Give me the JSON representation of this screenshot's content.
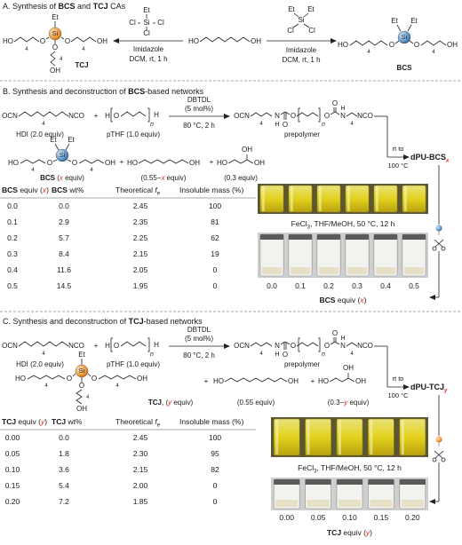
{
  "section_a": {
    "title": [
      "A. Synthesis of ",
      "BCS",
      " and ",
      "TCJ",
      " CAs"
    ],
    "tcj": {
      "name": "TCJ",
      "atoms": [
        "Et",
        "Si",
        "HO",
        "O",
        "O",
        "OH",
        "O",
        "OH"
      ],
      "repeats": [
        "4",
        "4",
        "4"
      ]
    },
    "left_reagent": [
      "Et",
      "Si",
      "Cl",
      "Cl",
      "Cl"
    ],
    "left_conditions": [
      "Imidazole",
      "DCM, rt, 1 h"
    ],
    "diol": [
      "HO",
      "OH"
    ],
    "right_reagent": [
      "Et",
      "Et",
      "Si",
      "Cl",
      "Cl"
    ],
    "right_conditions": [
      "Imidazole",
      "DCM, rt, 1 h"
    ],
    "bcs": {
      "name": "BCS",
      "atoms": [
        "Et",
        "Et",
        "Si",
        "HO",
        "O",
        "O",
        "OH"
      ],
      "repeats": [
        "4",
        "4"
      ]
    }
  },
  "section_b": {
    "title": [
      "B. Synthesis and deconstruction of ",
      "BCS",
      "-based networks"
    ],
    "hdi": {
      "atoms": [
        "OCN",
        "NCO"
      ],
      "repeat": "4",
      "label": "HDI (2.0 equiv)"
    },
    "plus": [
      "+",
      "+",
      "+"
    ],
    "pthf": {
      "atoms": [
        "H",
        "O",
        "H"
      ],
      "repeat": "n",
      "label": "pTHF (1.0 equiv)"
    },
    "conditions": [
      "DBTDL",
      "(5 mol%)",
      "80 °C, 2 h"
    ],
    "prepolymer": {
      "atoms": [
        "OCN",
        "N",
        "H",
        "O",
        "O",
        "O",
        "O",
        "N",
        "H",
        "NCO"
      ],
      "repeats": [
        "4",
        "n",
        "4"
      ],
      "label": "prepolymer"
    },
    "bcs": {
      "atoms": [
        "Et",
        "Et",
        "Si",
        "HO",
        "O",
        "O",
        "OH"
      ],
      "repeats": [
        "4",
        "4"
      ],
      "label": [
        "BCS",
        " (",
        "x",
        " equiv)"
      ]
    },
    "diol": {
      "atoms": [
        "HO",
        "OH"
      ],
      "label": [
        "(0.55−",
        "x",
        " equiv)"
      ]
    },
    "glycerol": {
      "atoms": [
        "HO",
        "OH",
        "OH"
      ],
      "label": "(0.3 equiv)"
    },
    "cure": [
      "rt to",
      "100 °C"
    ],
    "product": [
      "dPU-BCS",
      "x"
    ],
    "table": {
      "header": [
        [
          "BCS",
          " equiv (",
          "x",
          ")"
        ],
        [
          "BCS",
          " wt%"
        ],
        [
          "Theoretical ",
          "f",
          "e"
        ],
        [
          "Insoluble mass (%)"
        ]
      ],
      "rows": [
        [
          "0.0",
          "0.0",
          "2.45",
          "100"
        ],
        [
          "0.1",
          "2.9",
          "2.35",
          "81"
        ],
        [
          "0.2",
          "5.7",
          "2.25",
          "62"
        ],
        [
          "0.3",
          "8.4",
          "2.15",
          "19"
        ],
        [
          "0.4",
          "11.6",
          "2.05",
          "0"
        ],
        [
          "0.5",
          "14.5",
          "1.95",
          "0"
        ]
      ]
    },
    "photo_caption": [
      "FeCl",
      "3",
      ", THF/MeOH, 50 °C, 12 h"
    ],
    "photo_ticks": [
      "0.0",
      "0.1",
      "0.2",
      "0.3",
      "0.4",
      "0.5"
    ],
    "photo_axis": [
      "BCS",
      " equiv (",
      "x",
      ")"
    ]
  },
  "section_c": {
    "title": [
      "C. Synthesis and deconstruction of ",
      "TCJ",
      "-based networks"
    ],
    "hdi": {
      "atoms": [
        "OCN",
        "NCO"
      ],
      "repeat": "4",
      "label": "HDI (2.0 equiv)"
    },
    "plus": [
      "+",
      "+",
      "+"
    ],
    "pthf": {
      "atoms": [
        "H",
        "O",
        "H"
      ],
      "repeat": "n",
      "label": "pTHF (1.0 equiv)"
    },
    "conditions": [
      "DBTDL",
      "(5 mol%)",
      "80 °C, 2 h"
    ],
    "prepolymer": {
      "atoms": [
        "OCN",
        "N",
        "H",
        "O",
        "O",
        "O",
        "O",
        "N",
        "H",
        "NCO"
      ],
      "repeats": [
        "4",
        "n",
        "4"
      ],
      "label": "prepolymer"
    },
    "tcj": {
      "atoms": [
        "Et",
        "Si",
        "HO",
        "O",
        "O",
        "OH",
        "O",
        "OH"
      ],
      "repeats": [
        "4",
        "4",
        "4"
      ],
      "label": [
        "TCJ",
        ", (",
        "y",
        " equiv)"
      ]
    },
    "diol": {
      "atoms": [
        "HO",
        "OH"
      ],
      "label": "(0.55 equiv)"
    },
    "glycerol": {
      "atoms": [
        "HO",
        "OH",
        "OH"
      ],
      "label": [
        "(0.3−",
        "y",
        " equiv)"
      ]
    },
    "cure": [
      "rt to",
      "100 °C"
    ],
    "product": [
      "dPU-TCJ",
      "y"
    ],
    "table": {
      "header": [
        [
          "TCJ",
          " equiv (",
          "y",
          ")"
        ],
        [
          "TCJ",
          " wt%"
        ],
        [
          "Theoretical ",
          "f",
          "e"
        ],
        [
          "Insoluble mass (%)"
        ]
      ],
      "rows": [
        [
          "0.00",
          "0.0",
          "2.45",
          "100"
        ],
        [
          "0.05",
          "1.8",
          "2.30",
          "95"
        ],
        [
          "0.10",
          "3.6",
          "2.15",
          "82"
        ],
        [
          "0.15",
          "5.4",
          "2.00",
          "0"
        ],
        [
          "0.20",
          "7.2",
          "1.85",
          "0"
        ]
      ]
    },
    "photo_caption": [
      "FeCl",
      "3",
      ", THF/MeOH, 50 °C, 12 h"
    ],
    "photo_ticks": [
      "0.00",
      "0.05",
      "0.10",
      "0.15",
      "0.20"
    ],
    "photo_axis": [
      "TCJ",
      " equiv (",
      "y",
      ")"
    ]
  }
}
